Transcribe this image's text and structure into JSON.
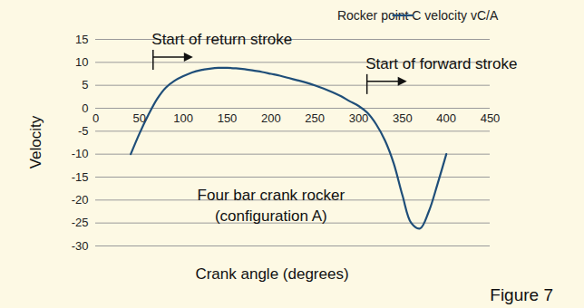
{
  "chart_data": {
    "type": "line",
    "x_label": "Crank angle (degrees)",
    "y_label": "Velocity",
    "figure_label": "Figure 7",
    "x": [
      40,
      50,
      60,
      70,
      80,
      90,
      100,
      110,
      120,
      130,
      140,
      150,
      160,
      170,
      180,
      190,
      200,
      210,
      220,
      230,
      240,
      250,
      260,
      270,
      280,
      290,
      300,
      310,
      320,
      330,
      340,
      350,
      360,
      370,
      380,
      390,
      400
    ],
    "series": [
      {
        "name": "Rocker point C velocity vC/A",
        "color": "#1f4e79",
        "values": [
          -10,
          -5.5,
          -1.5,
          2,
          4.5,
          6,
          7,
          7.8,
          8.3,
          8.6,
          8.8,
          8.8,
          8.7,
          8.5,
          8.2,
          7.9,
          7.5,
          7.1,
          6.6,
          6.1,
          5.6,
          5,
          4.3,
          3.5,
          2.6,
          1.5,
          0.5,
          -1,
          -3.5,
          -7,
          -12,
          -19,
          -25,
          -26.2,
          -22.5,
          -16.5,
          -10
        ]
      }
    ],
    "xlim": [
      0,
      450
    ],
    "xticks": [
      0,
      50,
      100,
      150,
      200,
      250,
      300,
      350,
      400,
      450
    ],
    "ylim": [
      -30,
      15
    ],
    "yticks": [
      -30,
      -25,
      -20,
      -15,
      -10,
      -5,
      0,
      5,
      10,
      15
    ],
    "grid": true,
    "legend": "top-right",
    "annotations": [
      {
        "text": "Start of return stroke",
        "x": 66,
        "y": 15,
        "arrow": true
      },
      {
        "text": "Start of forward stroke",
        "x": 310,
        "y": 9.7,
        "arrow": true
      },
      {
        "text": "Four bar crank rocker",
        "x": 200,
        "y": -19
      },
      {
        "text": "(configuration A)",
        "x": 200,
        "y": -23.5
      }
    ]
  }
}
